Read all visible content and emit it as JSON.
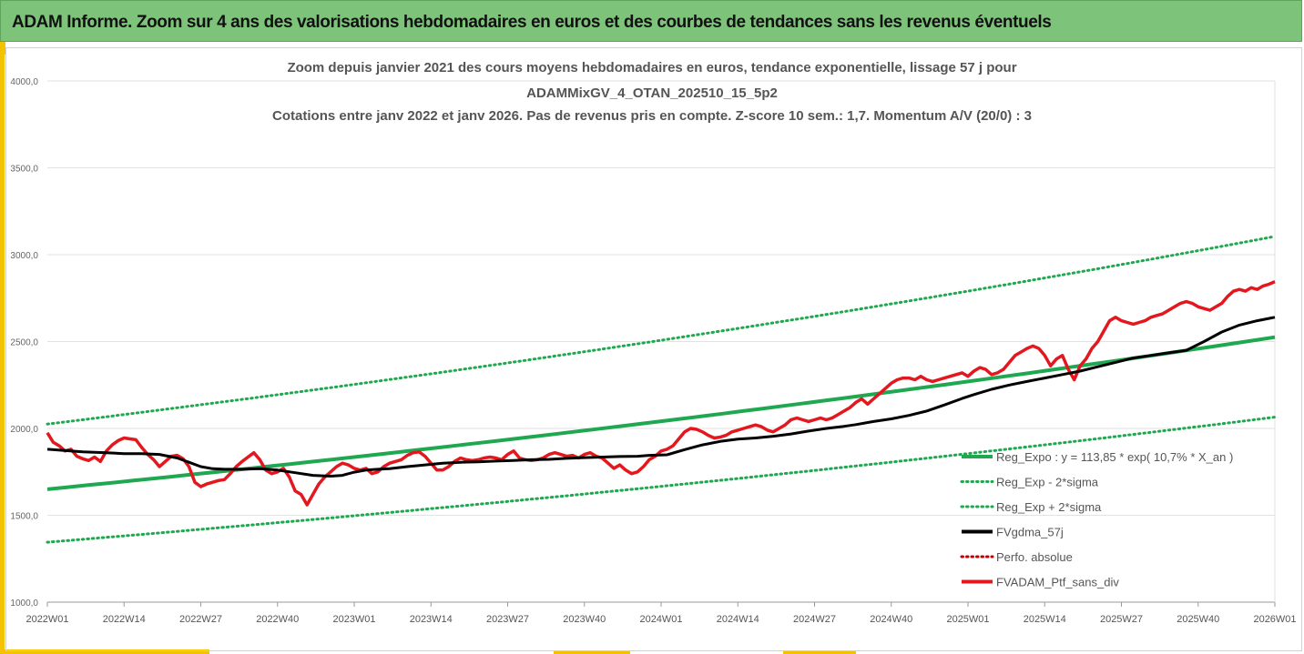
{
  "banner": {
    "title": "ADAM Informe. Zoom sur 4 ans des valorisations hebdomadaires en euros et des courbes de tendances sans les revenus éventuels"
  },
  "colors": {
    "banner_bg": "#7dc47a",
    "accent": "#f3c200",
    "green": "#1fa84f",
    "black": "#000000",
    "red": "#e3181f",
    "darkred": "#c00000"
  },
  "chart_data": {
    "type": "line",
    "title_lines": [
      "Zoom depuis janvier 2021 des cours moyens hebdomadaires  en euros, tendance exponentielle, lissage 57 j pour",
      "ADAMMixGV_4_OTAN_202510_15_5p2",
      "Cotations entre janv 2022 et janv 2026. Pas de revenus pris en compte. Z-score 10 sem.: 1,7. Momentum A/V (20/0) : 3"
    ],
    "ylim": [
      1000,
      4000
    ],
    "y_ticks": [
      "1000,0",
      "1500,0",
      "2000,0",
      "2500,0",
      "3000,0",
      "3500,0",
      "4000,0"
    ],
    "x_ticks": [
      "2022W01",
      "2022W14",
      "2022W27",
      "2022W40",
      "2023W01",
      "2023W14",
      "2023W27",
      "2023W40",
      "2024W01",
      "2024W14",
      "2024W27",
      "2024W40",
      "2025W01",
      "2025W14",
      "2025W27",
      "2025W40",
      "2026W01"
    ],
    "grid": "horizontal",
    "legend_position": "right",
    "legend": [
      {
        "label": "Reg_Expo : y = 113,85 * exp( 10,7% *  X_an )",
        "color": "#1fa84f",
        "style": "solid"
      },
      {
        "label": "Reg_Exp - 2*sigma",
        "color": "#1fa84f",
        "style": "dotted"
      },
      {
        "label": "Reg_Exp + 2*sigma",
        "color": "#1fa84f",
        "style": "dotted"
      },
      {
        "label": "FVgdma_57j",
        "color": "#000000",
        "style": "solid"
      },
      {
        "label": "Perfo. absolue",
        "color": "#c00000",
        "style": "dotted"
      },
      {
        "label": "FVADAM_Ptf_sans_div",
        "color": "#e3181f",
        "style": "solid"
      }
    ],
    "series": [
      {
        "name": "Reg_Expo : y = 113,85 * exp( 10,7% *  X_an )",
        "x_start": 0,
        "x_end": 208,
        "y_start": 1650,
        "y_end": 2525
      },
      {
        "name": "Reg_Exp - 2*sigma",
        "x_start": 0,
        "x_end": 208,
        "y_start": 1345,
        "y_end": 2065
      },
      {
        "name": "Reg_Exp + 2*sigma",
        "x_start": 0,
        "x_end": 208,
        "y_start": 2025,
        "y_end": 3105
      },
      {
        "name": "FVgdma_57j",
        "points": [
          [
            0,
            1880
          ],
          [
            6,
            1865
          ],
          [
            10,
            1860
          ],
          [
            13,
            1855
          ],
          [
            16,
            1855
          ],
          [
            19,
            1850
          ],
          [
            22,
            1830
          ],
          [
            24,
            1805
          ],
          [
            26,
            1780
          ],
          [
            28,
            1768
          ],
          [
            30,
            1765
          ],
          [
            33,
            1765
          ],
          [
            36,
            1768
          ],
          [
            39,
            1760
          ],
          [
            42,
            1745
          ],
          [
            45,
            1730
          ],
          [
            48,
            1725
          ],
          [
            50,
            1730
          ],
          [
            52,
            1748
          ],
          [
            54,
            1760
          ],
          [
            56,
            1765
          ],
          [
            58,
            1768
          ],
          [
            61,
            1780
          ],
          [
            64,
            1790
          ],
          [
            67,
            1800
          ],
          [
            70,
            1805
          ],
          [
            73,
            1808
          ],
          [
            76,
            1812
          ],
          [
            79,
            1815
          ],
          [
            82,
            1820
          ],
          [
            85,
            1822
          ],
          [
            88,
            1828
          ],
          [
            91,
            1832
          ],
          [
            94,
            1835
          ],
          [
            97,
            1838
          ],
          [
            100,
            1840
          ],
          [
            102,
            1845
          ],
          [
            105,
            1848
          ],
          [
            108,
            1878
          ],
          [
            111,
            1905
          ],
          [
            114,
            1925
          ],
          [
            117,
            1938
          ],
          [
            120,
            1945
          ],
          [
            123,
            1955
          ],
          [
            126,
            1968
          ],
          [
            129,
            1985
          ],
          [
            132,
            2000
          ],
          [
            135,
            2012
          ],
          [
            137,
            2022
          ],
          [
            140,
            2040
          ],
          [
            143,
            2055
          ],
          [
            146,
            2075
          ],
          [
            149,
            2100
          ],
          [
            152,
            2135
          ],
          [
            155,
            2172
          ],
          [
            157,
            2195
          ],
          [
            160,
            2225
          ],
          [
            163,
            2250
          ],
          [
            166,
            2270
          ],
          [
            169,
            2290
          ],
          [
            172,
            2310
          ],
          [
            175,
            2330
          ],
          [
            178,
            2355
          ],
          [
            181,
            2380
          ],
          [
            184,
            2405
          ],
          [
            187,
            2420
          ],
          [
            190,
            2435
          ],
          [
            193,
            2450
          ],
          [
            196,
            2500
          ],
          [
            199,
            2555
          ],
          [
            202,
            2595
          ],
          [
            205,
            2620
          ],
          [
            208,
            2640
          ]
        ]
      },
      {
        "name": "FVADAM_Ptf_sans_div",
        "points": [
          [
            0,
            1975
          ],
          [
            1,
            1920
          ],
          [
            2,
            1900
          ],
          [
            3,
            1870
          ],
          [
            4,
            1880
          ],
          [
            5,
            1840
          ],
          [
            6,
            1825
          ],
          [
            7,
            1815
          ],
          [
            8,
            1835
          ],
          [
            9,
            1810
          ],
          [
            10,
            1870
          ],
          [
            11,
            1905
          ],
          [
            12,
            1930
          ],
          [
            13,
            1945
          ],
          [
            14,
            1940
          ],
          [
            15,
            1935
          ],
          [
            16,
            1890
          ],
          [
            17,
            1850
          ],
          [
            18,
            1820
          ],
          [
            19,
            1780
          ],
          [
            20,
            1810
          ],
          [
            21,
            1840
          ],
          [
            22,
            1845
          ],
          [
            23,
            1825
          ],
          [
            24,
            1780
          ],
          [
            25,
            1690
          ],
          [
            26,
            1665
          ],
          [
            27,
            1680
          ],
          [
            28,
            1690
          ],
          [
            29,
            1700
          ],
          [
            30,
            1705
          ],
          [
            31,
            1740
          ],
          [
            32,
            1780
          ],
          [
            33,
            1810
          ],
          [
            34,
            1835
          ],
          [
            35,
            1860
          ],
          [
            36,
            1820
          ],
          [
            37,
            1760
          ],
          [
            38,
            1740
          ],
          [
            39,
            1750
          ],
          [
            40,
            1770
          ],
          [
            41,
            1720
          ],
          [
            42,
            1640
          ],
          [
            43,
            1620
          ],
          [
            44,
            1560
          ],
          [
            45,
            1620
          ],
          [
            46,
            1680
          ],
          [
            47,
            1720
          ],
          [
            48,
            1750
          ],
          [
            49,
            1780
          ],
          [
            50,
            1800
          ],
          [
            51,
            1790
          ],
          [
            52,
            1770
          ],
          [
            53,
            1760
          ],
          [
            54,
            1770
          ],
          [
            55,
            1740
          ],
          [
            56,
            1750
          ],
          [
            57,
            1780
          ],
          [
            58,
            1800
          ],
          [
            59,
            1810
          ],
          [
            60,
            1820
          ],
          [
            61,
            1845
          ],
          [
            62,
            1860
          ],
          [
            63,
            1865
          ],
          [
            64,
            1840
          ],
          [
            65,
            1800
          ],
          [
            66,
            1760
          ],
          [
            67,
            1760
          ],
          [
            68,
            1780
          ],
          [
            69,
            1810
          ],
          [
            70,
            1830
          ],
          [
            71,
            1820
          ],
          [
            72,
            1815
          ],
          [
            73,
            1820
          ],
          [
            74,
            1830
          ],
          [
            75,
            1835
          ],
          [
            76,
            1830
          ],
          [
            77,
            1820
          ],
          [
            78,
            1850
          ],
          [
            79,
            1870
          ],
          [
            80,
            1830
          ],
          [
            81,
            1820
          ],
          [
            82,
            1815
          ],
          [
            83,
            1820
          ],
          [
            84,
            1830
          ],
          [
            85,
            1850
          ],
          [
            86,
            1860
          ],
          [
            87,
            1850
          ],
          [
            88,
            1840
          ],
          [
            89,
            1845
          ],
          [
            90,
            1830
          ],
          [
            91,
            1850
          ],
          [
            92,
            1860
          ],
          [
            93,
            1840
          ],
          [
            94,
            1830
          ],
          [
            95,
            1800
          ],
          [
            96,
            1770
          ],
          [
            97,
            1790
          ],
          [
            98,
            1760
          ],
          [
            99,
            1740
          ],
          [
            100,
            1750
          ],
          [
            101,
            1780
          ],
          [
            102,
            1820
          ],
          [
            103,
            1840
          ],
          [
            104,
            1870
          ],
          [
            105,
            1880
          ],
          [
            106,
            1900
          ],
          [
            107,
            1940
          ],
          [
            108,
            1980
          ],
          [
            109,
            2000
          ],
          [
            110,
            1995
          ],
          [
            111,
            1980
          ],
          [
            112,
            1960
          ],
          [
            113,
            1945
          ],
          [
            114,
            1950
          ],
          [
            115,
            1960
          ],
          [
            116,
            1980
          ],
          [
            117,
            1990
          ],
          [
            118,
            2000
          ],
          [
            119,
            2010
          ],
          [
            120,
            2020
          ],
          [
            121,
            2010
          ],
          [
            122,
            1990
          ],
          [
            123,
            1980
          ],
          [
            124,
            2000
          ],
          [
            125,
            2020
          ],
          [
            126,
            2050
          ],
          [
            127,
            2060
          ],
          [
            128,
            2050
          ],
          [
            129,
            2040
          ],
          [
            130,
            2050
          ],
          [
            131,
            2060
          ],
          [
            132,
            2050
          ],
          [
            133,
            2060
          ],
          [
            134,
            2080
          ],
          [
            135,
            2100
          ],
          [
            136,
            2120
          ],
          [
            137,
            2150
          ],
          [
            138,
            2170
          ],
          [
            139,
            2140
          ],
          [
            140,
            2170
          ],
          [
            141,
            2200
          ],
          [
            142,
            2230
          ],
          [
            143,
            2260
          ],
          [
            144,
            2280
          ],
          [
            145,
            2290
          ],
          [
            146,
            2290
          ],
          [
            147,
            2280
          ],
          [
            148,
            2300
          ],
          [
            149,
            2280
          ],
          [
            150,
            2270
          ],
          [
            151,
            2280
          ],
          [
            152,
            2290
          ],
          [
            153,
            2300
          ],
          [
            154,
            2310
          ],
          [
            155,
            2320
          ],
          [
            156,
            2300
          ],
          [
            157,
            2330
          ],
          [
            158,
            2350
          ],
          [
            159,
            2340
          ],
          [
            160,
            2310
          ],
          [
            161,
            2320
          ],
          [
            162,
            2340
          ],
          [
            163,
            2380
          ],
          [
            164,
            2420
          ],
          [
            165,
            2440
          ],
          [
            166,
            2460
          ],
          [
            167,
            2475
          ],
          [
            168,
            2460
          ],
          [
            169,
            2420
          ],
          [
            170,
            2360
          ],
          [
            171,
            2400
          ],
          [
            172,
            2420
          ],
          [
            173,
            2340
          ],
          [
            174,
            2280
          ],
          [
            175,
            2360
          ],
          [
            176,
            2400
          ],
          [
            177,
            2460
          ],
          [
            178,
            2500
          ],
          [
            179,
            2560
          ],
          [
            180,
            2620
          ],
          [
            181,
            2640
          ],
          [
            182,
            2620
          ],
          [
            183,
            2610
          ],
          [
            184,
            2600
          ],
          [
            185,
            2610
          ],
          [
            186,
            2620
          ],
          [
            187,
            2640
          ],
          [
            188,
            2650
          ],
          [
            189,
            2660
          ],
          [
            190,
            2680
          ],
          [
            191,
            2700
          ],
          [
            192,
            2720
          ],
          [
            193,
            2730
          ],
          [
            194,
            2720
          ],
          [
            195,
            2700
          ],
          [
            196,
            2690
          ],
          [
            197,
            2680
          ],
          [
            198,
            2700
          ],
          [
            199,
            2720
          ],
          [
            200,
            2760
          ],
          [
            201,
            2790
          ],
          [
            202,
            2800
          ],
          [
            203,
            2790
          ],
          [
            204,
            2810
          ],
          [
            205,
            2800
          ],
          [
            206,
            2820
          ],
          [
            207,
            2830
          ],
          [
            208,
            2845
          ]
        ]
      }
    ]
  }
}
